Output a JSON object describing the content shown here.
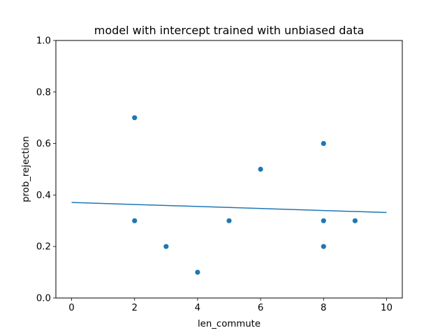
{
  "chart_data": {
    "type": "scatter",
    "title": "model with intercept trained with unbiased data",
    "xlabel": "len_commute",
    "ylabel": "prob_rejection",
    "xlim": [
      -0.5,
      10.5
    ],
    "ylim": [
      0.0,
      1.0
    ],
    "xticks": [
      0,
      2,
      4,
      6,
      8,
      10
    ],
    "yticks": [
      0.0,
      0.2,
      0.4,
      0.6,
      0.8,
      1.0
    ],
    "xtick_labels": [
      "0",
      "2",
      "4",
      "6",
      "8",
      "10"
    ],
    "ytick_labels": [
      "0.0",
      "0.2",
      "0.4",
      "0.6",
      "0.8",
      "1.0"
    ],
    "points": [
      {
        "x": 2,
        "y": 0.7
      },
      {
        "x": 2,
        "y": 0.3
      },
      {
        "x": 3,
        "y": 0.2
      },
      {
        "x": 4,
        "y": 0.1
      },
      {
        "x": 5,
        "y": 0.3
      },
      {
        "x": 6,
        "y": 0.5
      },
      {
        "x": 8,
        "y": 0.6
      },
      {
        "x": 8,
        "y": 0.3
      },
      {
        "x": 8,
        "y": 0.2
      },
      {
        "x": 9,
        "y": 0.3
      }
    ],
    "fit_line": {
      "x": [
        0,
        10
      ],
      "y": [
        0.371,
        0.332
      ]
    },
    "grid": false,
    "color": "#1f77b4"
  }
}
